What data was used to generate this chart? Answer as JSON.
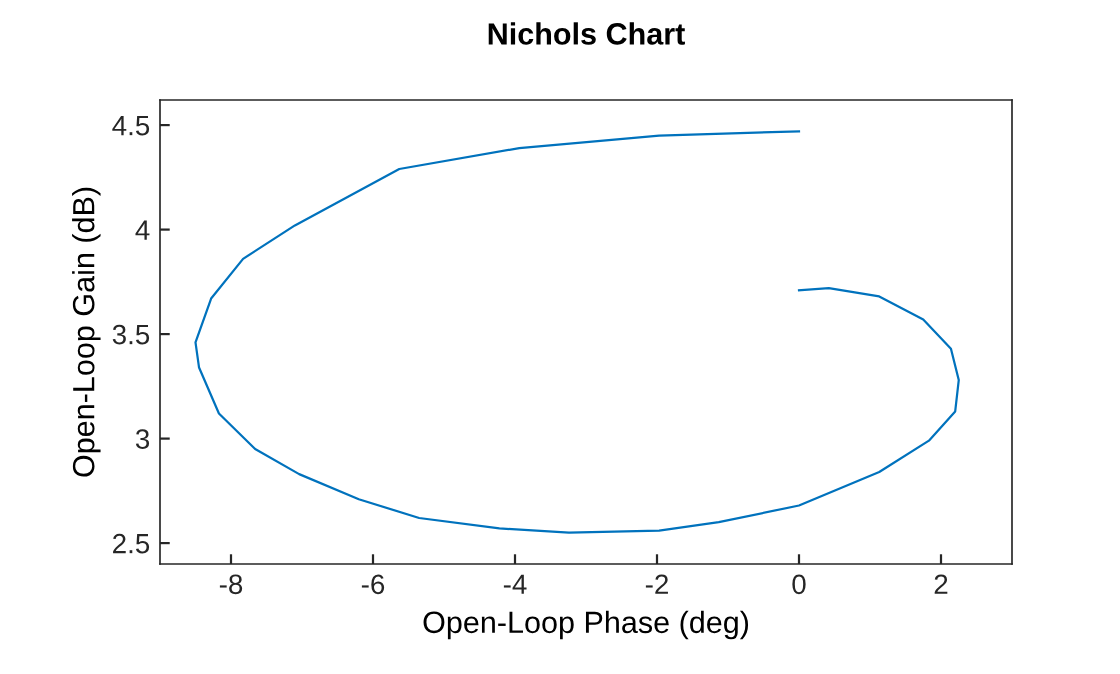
{
  "chart_data": {
    "type": "line",
    "title": "Nichols Chart",
    "xlabel": "Open-Loop Phase (deg)",
    "ylabel": "Open-Loop Gain (dB)",
    "series": [
      {
        "color": "#0072bd",
        "x": [
          0,
          -1.97,
          -3.94,
          -5.63,
          -7.1,
          -7.83,
          -8.28,
          -8.5,
          -8.45,
          -8.17,
          -7.66,
          -7.04,
          -6.2,
          -5.35,
          -4.22,
          -3.24,
          -1.97,
          -1.13,
          0,
          1.13,
          1.83,
          2.2,
          2.25,
          2.14,
          1.75,
          1.13,
          0.42,
          0
        ],
        "values": [
          4.47,
          4.45,
          4.39,
          4.29,
          4.02,
          3.86,
          3.67,
          3.46,
          3.34,
          3.12,
          2.95,
          2.83,
          2.71,
          2.62,
          2.57,
          2.55,
          2.56,
          2.6,
          2.68,
          2.84,
          2.99,
          3.13,
          3.28,
          3.43,
          3.57,
          3.68,
          3.72,
          3.71
        ]
      }
    ],
    "xlim": [
      -9,
      3
    ],
    "xticks": [
      -8,
      -6,
      -4,
      -2,
      0,
      2
    ],
    "ylim": [
      2.4,
      4.62
    ],
    "yticks": [
      2.5,
      3,
      3.5,
      4,
      4.5
    ],
    "grid": false,
    "legend": false,
    "marker": "none",
    "line_style": "solid"
  }
}
